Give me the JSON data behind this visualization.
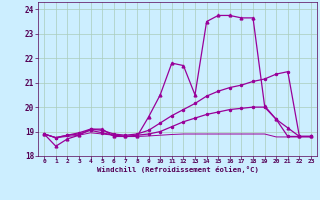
{
  "xlabel": "Windchill (Refroidissement éolien,°C)",
  "bg_color": "#cceeff",
  "grid_color": "#aaccbb",
  "line_color": "#990099",
  "xlim": [
    -0.5,
    23.5
  ],
  "ylim": [
    18,
    24.3
  ],
  "yticks": [
    18,
    19,
    20,
    21,
    22,
    23,
    24
  ],
  "xticks": [
    0,
    1,
    2,
    3,
    4,
    5,
    6,
    7,
    8,
    9,
    10,
    11,
    12,
    13,
    14,
    15,
    16,
    17,
    18,
    19,
    20,
    21,
    22,
    23
  ],
  "s1_x": [
    0,
    1,
    2,
    3,
    4,
    5,
    6,
    7,
    8,
    9,
    10,
    11,
    12,
    13,
    14,
    15,
    16,
    17,
    18,
    19,
    20,
    21,
    22,
    23
  ],
  "s1_y": [
    18.9,
    18.4,
    18.7,
    18.85,
    19.1,
    19.1,
    18.8,
    18.8,
    18.8,
    19.6,
    20.5,
    21.8,
    21.7,
    20.5,
    23.5,
    23.75,
    23.75,
    23.65,
    23.65,
    20.05,
    19.5,
    19.15,
    18.8,
    18.8
  ],
  "s2_x": [
    0,
    1,
    2,
    3,
    4,
    5,
    6,
    7,
    8,
    9,
    10,
    11,
    12,
    13,
    14,
    15,
    16,
    17,
    18,
    19,
    20,
    21,
    22,
    23
  ],
  "s2_y": [
    18.9,
    18.75,
    18.85,
    18.95,
    19.1,
    19.05,
    18.9,
    18.85,
    18.9,
    19.05,
    19.35,
    19.65,
    19.9,
    20.15,
    20.45,
    20.65,
    20.8,
    20.9,
    21.05,
    21.15,
    21.35,
    21.45,
    18.8,
    18.8
  ],
  "s3_x": [
    0,
    1,
    2,
    3,
    4,
    5,
    6,
    7,
    8,
    9,
    10,
    11,
    12,
    13,
    14,
    15,
    16,
    17,
    18,
    19,
    20,
    21,
    22,
    23
  ],
  "s3_y": [
    18.9,
    18.75,
    18.85,
    18.9,
    19.05,
    18.95,
    18.85,
    18.8,
    18.85,
    18.9,
    19.0,
    19.2,
    19.4,
    19.55,
    19.7,
    19.8,
    19.9,
    19.95,
    20.0,
    20.0,
    19.5,
    18.8,
    18.8,
    18.8
  ],
  "s4_x": [
    0,
    1,
    2,
    3,
    4,
    5,
    6,
    7,
    8,
    9,
    10,
    11,
    12,
    13,
    14,
    15,
    16,
    17,
    18,
    19,
    20,
    21,
    22,
    23
  ],
  "s4_y": [
    18.9,
    18.75,
    18.8,
    18.85,
    18.95,
    18.9,
    18.85,
    18.8,
    18.8,
    18.82,
    18.85,
    18.88,
    18.9,
    18.9,
    18.9,
    18.9,
    18.9,
    18.9,
    18.9,
    18.9,
    18.78,
    18.78,
    18.78,
    18.78
  ]
}
